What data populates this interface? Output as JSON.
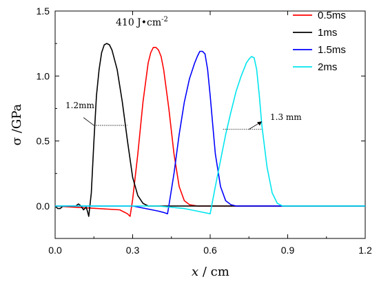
{
  "chart_data": {
    "type": "line",
    "title": "",
    "xlabel": "x",
    "xlabel_unit": " / cm",
    "ylabel": "σ /GPa",
    "xlim": [
      0.0,
      1.2
    ],
    "ylim": [
      -0.25,
      1.5
    ],
    "xticks": [
      0.0,
      0.3,
      0.6,
      0.9,
      1.2
    ],
    "xtick_labels": [
      "0.0",
      "0.3",
      "0.6",
      "0.9",
      "1.2"
    ],
    "yticks": [
      0.0,
      0.5,
      1.0,
      1.5
    ],
    "ytick_labels": [
      "0.0",
      "0.5",
      "1.0",
      "1.5"
    ],
    "grid": false,
    "legend_position": "top-right",
    "annotations": {
      "fluence": "410 J•cm",
      "fluence_exp": "-2",
      "width_1": "1.2mm",
      "width_2": "1.3 mm"
    },
    "series": [
      {
        "name": "0.5ms",
        "color": "#ff0000",
        "x": [
          0.0,
          0.25,
          0.28,
          0.29,
          0.3,
          0.32,
          0.34,
          0.36,
          0.37,
          0.38,
          0.39,
          0.4,
          0.41,
          0.42,
          0.44,
          0.46,
          0.48,
          0.5,
          0.52,
          0.55,
          0.6,
          1.2
        ],
        "y": [
          0.0,
          -0.03,
          -0.06,
          -0.08,
          0.05,
          0.4,
          0.8,
          1.1,
          1.18,
          1.22,
          1.22,
          1.2,
          1.15,
          1.05,
          0.75,
          0.4,
          0.15,
          0.04,
          0.01,
          0.0,
          0.0,
          0.0
        ]
      },
      {
        "name": "1ms",
        "color": "#000000",
        "x": [
          0.0,
          0.01,
          0.02,
          0.03,
          0.05,
          0.08,
          0.09,
          0.1,
          0.11,
          0.12,
          0.125,
          0.13,
          0.14,
          0.15,
          0.16,
          0.17,
          0.18,
          0.19,
          0.2,
          0.21,
          0.22,
          0.24,
          0.26,
          0.28,
          0.3,
          0.32,
          0.34,
          0.36,
          0.4,
          0.5,
          1.2
        ],
        "y": [
          0.0,
          -0.02,
          -0.02,
          0.0,
          0.0,
          0.0,
          0.015,
          0.0,
          -0.03,
          -0.01,
          -0.04,
          -0.08,
          0.1,
          0.5,
          0.85,
          1.05,
          1.18,
          1.24,
          1.25,
          1.24,
          1.2,
          1.05,
          0.8,
          0.5,
          0.22,
          0.08,
          0.02,
          0.0,
          0.0,
          0.0,
          0.0
        ]
      },
      {
        "name": "1.5ms",
        "color": "#0000ff",
        "x": [
          0.0,
          0.3,
          0.35,
          0.4,
          0.42,
          0.435,
          0.44,
          0.46,
          0.48,
          0.5,
          0.52,
          0.54,
          0.55,
          0.56,
          0.57,
          0.58,
          0.59,
          0.6,
          0.61,
          0.62,
          0.64,
          0.66,
          0.68,
          0.7,
          0.75,
          1.2
        ],
        "y": [
          0.0,
          0.0,
          -0.02,
          -0.04,
          -0.05,
          -0.06,
          0.0,
          0.25,
          0.55,
          0.8,
          0.98,
          1.1,
          1.15,
          1.19,
          1.19,
          1.17,
          1.05,
          0.85,
          0.62,
          0.4,
          0.15,
          0.04,
          0.01,
          0.0,
          0.0,
          0.0
        ]
      },
      {
        "name": "2ms",
        "color": "#00e5ee",
        "x": [
          0.0,
          0.4,
          0.5,
          0.55,
          0.6,
          0.62,
          0.64,
          0.66,
          0.68,
          0.7,
          0.72,
          0.74,
          0.75,
          0.76,
          0.77,
          0.78,
          0.79,
          0.8,
          0.82,
          0.84,
          0.86,
          0.88,
          0.9,
          1.2
        ],
        "y": [
          0.0,
          0.0,
          -0.02,
          -0.04,
          -0.06,
          0.15,
          0.35,
          0.55,
          0.72,
          0.88,
          1.0,
          1.1,
          1.13,
          1.15,
          1.14,
          1.05,
          0.85,
          0.62,
          0.3,
          0.1,
          0.02,
          0.0,
          0.0,
          0.0
        ]
      }
    ]
  }
}
